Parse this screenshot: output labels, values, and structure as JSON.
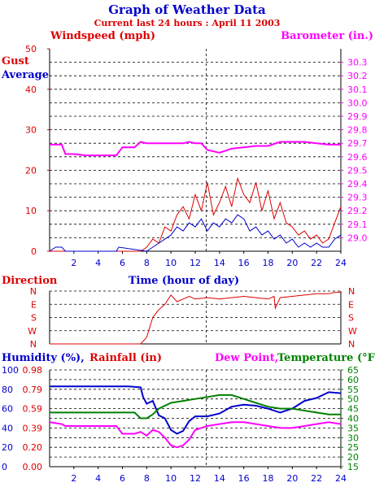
{
  "title": "Graph of Weather Data",
  "subtitle": "Current last 24 hours : April 11 2003",
  "colors": {
    "red": "#dd0000",
    "blue": "#0000cc",
    "magenta": "#ff00ff",
    "green": "#008000",
    "black": "#000000"
  },
  "chart_data": [
    {
      "type": "line",
      "name": "wind-barometer",
      "xlabel": "Time (hour of day)",
      "left_axis_label": "Windspeed (mph)",
      "right_axis_label": "Barometer (in.)",
      "legend": [
        "Gust",
        "Average"
      ],
      "xlim": [
        0,
        24
      ],
      "x_ticks": [
        2,
        4,
        6,
        8,
        10,
        12,
        14,
        16,
        18,
        20,
        22,
        24
      ],
      "ylim_left": [
        0,
        50
      ],
      "y_ticks_left": [
        0,
        10,
        20,
        30,
        40,
        50
      ],
      "ylim_right": [
        28.9,
        30.4
      ],
      "y_ticks_right": [
        "29.0",
        "29.1",
        "29.2",
        "29.3",
        "29.4",
        "29.5",
        "29.6",
        "29.7",
        "29.8",
        "29.9",
        "30.0",
        "30.1",
        "30.2",
        "30.3"
      ],
      "grid": true,
      "series": [
        {
          "name": "Barometer",
          "axis": "right",
          "color": "magenta",
          "x": [
            0,
            1,
            1.3,
            2,
            3,
            4,
            5,
            5.5,
            6,
            7,
            7.5,
            8,
            9,
            10,
            11,
            11.5,
            12,
            12.5,
            13,
            13.5,
            14,
            15,
            16,
            17,
            18,
            19,
            20,
            21,
            22,
            23,
            24
          ],
          "y": [
            29.69,
            29.69,
            29.62,
            29.62,
            29.61,
            29.61,
            29.61,
            29.61,
            29.67,
            29.67,
            29.71,
            29.7,
            29.7,
            29.7,
            29.7,
            29.71,
            29.7,
            29.7,
            29.65,
            29.64,
            29.63,
            29.66,
            29.67,
            29.68,
            29.68,
            29.71,
            29.71,
            29.71,
            29.7,
            29.69,
            29.69
          ]
        },
        {
          "name": "Gust",
          "axis": "left",
          "color": "red",
          "x": [
            0,
            7.5,
            8,
            8.5,
            9,
            9.5,
            10,
            10.5,
            11,
            11.5,
            12,
            12.5,
            13,
            13.5,
            14,
            14.5,
            15,
            15.5,
            16,
            16.5,
            17,
            17.5,
            18,
            18.5,
            19,
            19.5,
            20,
            20.5,
            21,
            21.5,
            22,
            22.5,
            23,
            23.5,
            24
          ],
          "y": [
            0,
            0,
            1,
            3,
            2,
            6,
            5,
            9,
            11,
            8,
            14,
            10,
            17,
            9,
            12,
            16,
            11,
            18,
            14,
            12,
            17,
            10,
            15,
            8,
            12,
            7,
            6,
            4,
            5,
            3,
            4,
            2,
            3,
            7,
            11
          ]
        },
        {
          "name": "Average",
          "axis": "left",
          "color": "blue",
          "x": [
            0,
            0.5,
            1,
            1.3,
            5.5,
            5.7,
            8,
            8.5,
            9,
            9.5,
            10,
            10.5,
            11,
            11.5,
            12,
            12.5,
            13,
            13.5,
            14,
            14.5,
            15,
            15.5,
            16,
            16.5,
            17,
            17.5,
            18,
            18.5,
            19,
            19.5,
            20,
            20.5,
            21,
            21.5,
            22,
            22.5,
            23,
            23.5,
            24
          ],
          "y": [
            0,
            1,
            1,
            0,
            0,
            1,
            0,
            1,
            2,
            3,
            4,
            6,
            5,
            7,
            6,
            8,
            5,
            7,
            6,
            8,
            7,
            9,
            8,
            5,
            6,
            4,
            5,
            3,
            4,
            2,
            3,
            1,
            2,
            1,
            2,
            1,
            1,
            3,
            4
          ]
        }
      ]
    },
    {
      "type": "line",
      "name": "direction",
      "ylabel": "Direction",
      "xlim": [
        0,
        24
      ],
      "y_categories": [
        "N",
        "W",
        "S",
        "E",
        "N"
      ],
      "grid": true,
      "series": [
        {
          "name": "Direction",
          "color": "red",
          "x": [
            0,
            0.15,
            0.2,
            7.5,
            8,
            8.5,
            9,
            9.5,
            10,
            10.5,
            11,
            11.5,
            12,
            13,
            14,
            15,
            16,
            17,
            18,
            18.5,
            18.6,
            19,
            20,
            21,
            22,
            23,
            23.5,
            24
          ],
          "y": [
            0,
            0,
            0,
            0,
            0.5,
            2,
            2.6,
            3,
            3.7,
            3.2,
            3.4,
            3.6,
            3.4,
            3.5,
            3.4,
            3.5,
            3.6,
            3.5,
            3.4,
            3.6,
            2.7,
            3.5,
            3.6,
            3.7,
            3.8,
            3.8,
            3.9,
            3.9
          ]
        }
      ]
    },
    {
      "type": "line",
      "name": "humidity-rain-temperature",
      "label_humidity": "Humidity (%),",
      "label_rainfall": "Rainfall (in)",
      "label_dewpoint": "Dew Point,",
      "label_temperature": "Temperature (°F)",
      "xlim": [
        0,
        24
      ],
      "x_ticks": [
        2,
        4,
        6,
        8,
        10,
        12,
        14,
        16,
        18,
        20,
        22,
        24
      ],
      "ylim_humidity": [
        0,
        100
      ],
      "y_ticks_humidity": [
        0,
        20,
        40,
        60,
        80,
        100
      ],
      "y_ticks_rainfall": [
        "0.00",
        "0.20",
        "0.39",
        "0.59",
        "0.79",
        "0.98"
      ],
      "ylim_temperature": [
        15,
        65
      ],
      "y_ticks_temperature": [
        15,
        20,
        25,
        30,
        35,
        40,
        45,
        50,
        55,
        60,
        65
      ],
      "grid": true,
      "series": [
        {
          "name": "Humidity",
          "axis": "humidity",
          "color": "blue",
          "x": [
            0,
            6.5,
            7.5,
            7.7,
            8,
            8.5,
            9,
            9.5,
            10,
            10.5,
            11,
            11.5,
            12,
            13,
            14,
            15,
            16,
            17,
            18,
            19,
            20,
            21,
            22,
            23,
            24
          ],
          "y": [
            83,
            83,
            82,
            72,
            65,
            68,
            53,
            50,
            38,
            34,
            37,
            47,
            52,
            52,
            55,
            62,
            64,
            63,
            60,
            56,
            60,
            68,
            71,
            77,
            76
          ]
        },
        {
          "name": "Temperature",
          "axis": "temperature",
          "color": "green",
          "x": [
            0,
            5.5,
            7,
            7.5,
            8,
            8.5,
            9,
            10,
            11,
            12,
            13,
            14,
            15,
            16,
            17,
            18,
            19,
            20,
            21,
            22,
            23,
            24
          ],
          "y": [
            43,
            43,
            43,
            40,
            40,
            42,
            45,
            48,
            49,
            50,
            51,
            52,
            52,
            50,
            48,
            46,
            45,
            45,
            44,
            43,
            42,
            42
          ]
        },
        {
          "name": "Dew Point",
          "axis": "temperature",
          "color": "magenta",
          "x": [
            0,
            1,
            1.3,
            5.5,
            6,
            7,
            7.5,
            8,
            8.5,
            9,
            9.5,
            10,
            10.5,
            11,
            11.5,
            12,
            13,
            14,
            15,
            16,
            17,
            18,
            19,
            20,
            21,
            22,
            23,
            24
          ],
          "y": [
            38,
            37,
            36,
            36,
            32,
            32,
            33,
            31,
            34,
            33,
            30,
            26,
            25,
            26,
            29,
            34,
            36,
            37,
            38,
            38,
            37,
            36,
            35,
            35,
            36,
            37,
            38,
            37
          ]
        }
      ]
    }
  ]
}
